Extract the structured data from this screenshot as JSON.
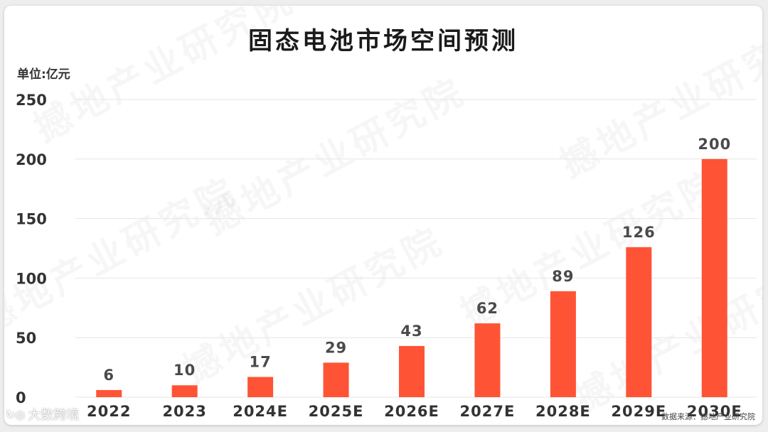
{
  "title": "固态电池市场空间预测",
  "unit_label": "单位:亿元",
  "source": "数据来源：撼地产业研究院",
  "watermark": "撼地产业研究院",
  "brand": "大数跨境",
  "colors": {
    "bar": "#ff5336",
    "grid": "#e6e6e6"
  },
  "chart_data": {
    "type": "bar",
    "categories": [
      "2022",
      "2023",
      "2024E",
      "2025E",
      "2026E",
      "2027E",
      "2028E",
      "2029E",
      "2030E"
    ],
    "values": [
      6,
      10,
      17,
      29,
      43,
      62,
      89,
      126,
      200
    ],
    "data_labels": [
      "6",
      "10",
      "17",
      "29",
      "43",
      "62",
      "89",
      "126",
      "200"
    ],
    "ylim": [
      0,
      250
    ],
    "yticks": [
      0,
      50,
      100,
      150,
      200,
      250
    ],
    "grid": true,
    "legend": "none"
  }
}
